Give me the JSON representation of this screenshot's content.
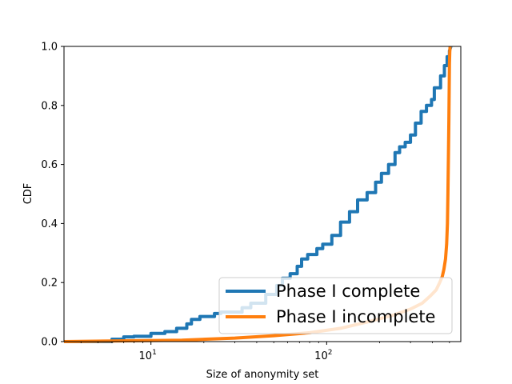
{
  "chart_data": {
    "type": "line",
    "xlabel": "Size of anonymity set",
    "ylabel": "CDF",
    "xscale": "log",
    "xlim": [
      3.2,
      580
    ],
    "ylim": [
      0,
      1
    ],
    "yticks": [
      "0.0",
      "0.2",
      "0.4",
      "0.6",
      "0.8",
      "1.0"
    ],
    "xticks": [
      {
        "value": 10,
        "base": "10",
        "exp": "1"
      },
      {
        "value": 100,
        "base": "10",
        "exp": "2"
      }
    ],
    "legend": {
      "location": "lower right"
    },
    "grid": false,
    "series": [
      {
        "name": "Phase I complete",
        "color": "#1f77b4",
        "x": [
          3.2,
          6,
          6,
          7,
          7,
          8,
          8,
          10,
          10,
          12,
          12,
          14,
          14,
          16,
          16,
          17,
          17,
          19,
          19,
          23,
          23,
          25,
          25,
          33,
          33,
          37,
          37,
          45,
          45,
          52,
          52,
          56,
          56,
          62,
          62,
          68,
          68,
          72,
          72,
          78,
          78,
          88,
          88,
          95,
          95,
          107,
          107,
          120,
          120,
          135,
          135,
          150,
          150,
          170,
          170,
          190,
          190,
          205,
          205,
          225,
          225,
          245,
          245,
          260,
          260,
          280,
          280,
          300,
          300,
          320,
          320,
          345,
          345,
          370,
          370,
          395,
          395,
          410,
          410,
          445,
          445,
          468,
          468,
          485,
          485,
          500,
          500,
          510
        ],
        "y": [
          0.0,
          0.0,
          0.008,
          0.008,
          0.016,
          0.016,
          0.018,
          0.018,
          0.028,
          0.028,
          0.034,
          0.034,
          0.045,
          0.045,
          0.06,
          0.06,
          0.075,
          0.075,
          0.085,
          0.085,
          0.095,
          0.095,
          0.1,
          0.1,
          0.115,
          0.115,
          0.13,
          0.13,
          0.16,
          0.16,
          0.19,
          0.19,
          0.215,
          0.215,
          0.23,
          0.23,
          0.255,
          0.255,
          0.28,
          0.28,
          0.295,
          0.295,
          0.315,
          0.315,
          0.33,
          0.33,
          0.36,
          0.36,
          0.405,
          0.405,
          0.44,
          0.44,
          0.48,
          0.48,
          0.505,
          0.505,
          0.54,
          0.54,
          0.57,
          0.57,
          0.6,
          0.6,
          0.64,
          0.64,
          0.66,
          0.66,
          0.675,
          0.675,
          0.7,
          0.7,
          0.74,
          0.74,
          0.78,
          0.78,
          0.8,
          0.8,
          0.82,
          0.82,
          0.86,
          0.86,
          0.9,
          0.9,
          0.935,
          0.935,
          0.965,
          0.965,
          0.985,
          1.0
        ]
      },
      {
        "name": "Phase I incomplete",
        "color": "#ff7f0e",
        "x": [
          3.2,
          15,
          30,
          50,
          80,
          120,
          180,
          240,
          300,
          350,
          390,
          420,
          440,
          455,
          465,
          475,
          482,
          487,
          490,
          493,
          496,
          498,
          500,
          502,
          504
        ],
        "y": [
          0.0,
          0.005,
          0.012,
          0.02,
          0.03,
          0.045,
          0.07,
          0.09,
          0.11,
          0.13,
          0.155,
          0.175,
          0.2,
          0.22,
          0.245,
          0.28,
          0.33,
          0.4,
          0.5,
          0.62,
          0.75,
          0.86,
          0.94,
          0.98,
          1.0
        ]
      }
    ]
  }
}
